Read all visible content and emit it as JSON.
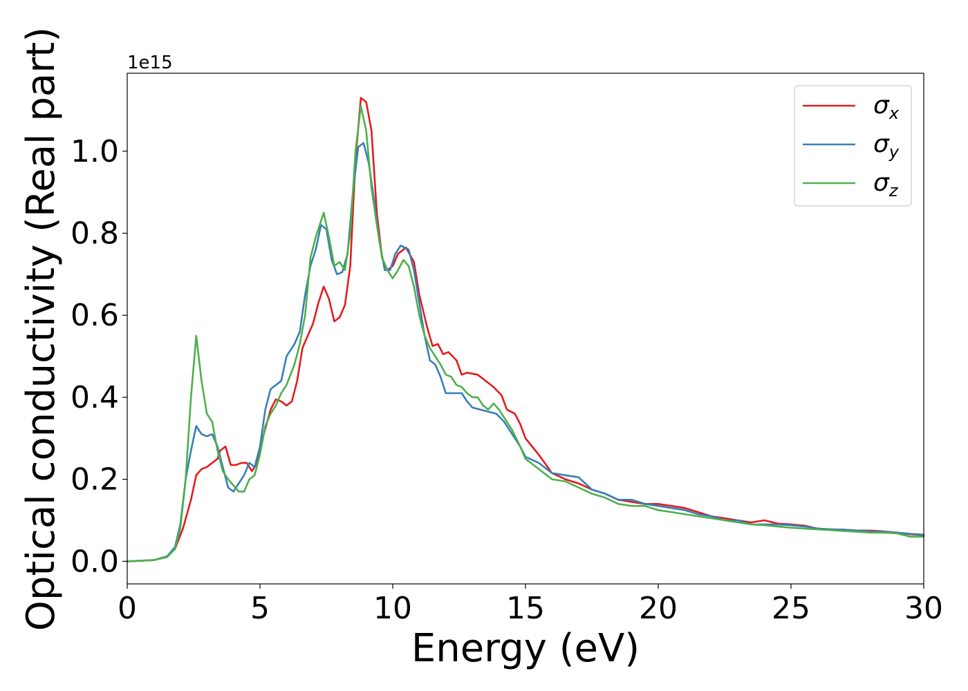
{
  "chart_data": {
    "type": "line",
    "title": "",
    "xlabel": "Energy (eV)",
    "ylabel": "Optical conductivity (Real part)",
    "y_offset_label": "1e15",
    "xlim": [
      0,
      30
    ],
    "ylim": [
      -0.055,
      1.19
    ],
    "x_ticks": [
      0,
      5,
      10,
      15,
      20,
      25,
      30
    ],
    "x_tick_labels": [
      "0",
      "5",
      "10",
      "15",
      "20",
      "25",
      "30"
    ],
    "y_ticks": [
      0.0,
      0.2,
      0.4,
      0.6,
      0.8,
      1.0
    ],
    "y_tick_labels": [
      "0.0",
      "0.2",
      "0.4",
      "0.6",
      "0.8",
      "1.0"
    ],
    "grid": false,
    "legend_position": "upper right",
    "series": [
      {
        "name": "σx",
        "symbol": "σ",
        "subscript": "x",
        "color": "#e41a1c",
        "points": [
          [
            0,
            0
          ],
          [
            1.0,
            0.003
          ],
          [
            1.5,
            0.012
          ],
          [
            1.8,
            0.03
          ],
          [
            2.1,
            0.08
          ],
          [
            2.4,
            0.15
          ],
          [
            2.6,
            0.21
          ],
          [
            2.8,
            0.225
          ],
          [
            3.0,
            0.23
          ],
          [
            3.2,
            0.24
          ],
          [
            3.4,
            0.25
          ],
          [
            3.5,
            0.27
          ],
          [
            3.7,
            0.28
          ],
          [
            3.9,
            0.235
          ],
          [
            4.1,
            0.235
          ],
          [
            4.3,
            0.24
          ],
          [
            4.5,
            0.24
          ],
          [
            4.7,
            0.22
          ],
          [
            4.9,
            0.24
          ],
          [
            5.1,
            0.3
          ],
          [
            5.4,
            0.37
          ],
          [
            5.6,
            0.395
          ],
          [
            5.8,
            0.39
          ],
          [
            6.0,
            0.38
          ],
          [
            6.2,
            0.39
          ],
          [
            6.4,
            0.44
          ],
          [
            6.6,
            0.52
          ],
          [
            6.8,
            0.55
          ],
          [
            7.0,
            0.58
          ],
          [
            7.2,
            0.63
          ],
          [
            7.4,
            0.67
          ],
          [
            7.6,
            0.64
          ],
          [
            7.8,
            0.585
          ],
          [
            8.0,
            0.595
          ],
          [
            8.2,
            0.625
          ],
          [
            8.4,
            0.72
          ],
          [
            8.6,
            0.98
          ],
          [
            8.8,
            1.13
          ],
          [
            9.0,
            1.12
          ],
          [
            9.2,
            1.05
          ],
          [
            9.4,
            0.85
          ],
          [
            9.6,
            0.74
          ],
          [
            9.8,
            0.71
          ],
          [
            10.0,
            0.72
          ],
          [
            10.2,
            0.75
          ],
          [
            10.5,
            0.765
          ],
          [
            10.8,
            0.73
          ],
          [
            11.0,
            0.65
          ],
          [
            11.3,
            0.57
          ],
          [
            11.5,
            0.525
          ],
          [
            11.7,
            0.53
          ],
          [
            11.9,
            0.505
          ],
          [
            12.1,
            0.51
          ],
          [
            12.4,
            0.49
          ],
          [
            12.6,
            0.455
          ],
          [
            12.8,
            0.46
          ],
          [
            13.2,
            0.455
          ],
          [
            13.5,
            0.44
          ],
          [
            13.8,
            0.425
          ],
          [
            14.1,
            0.405
          ],
          [
            14.3,
            0.37
          ],
          [
            14.6,
            0.36
          ],
          [
            14.8,
            0.335
          ],
          [
            15.0,
            0.3
          ],
          [
            15.5,
            0.26
          ],
          [
            16.0,
            0.215
          ],
          [
            16.5,
            0.2
          ],
          [
            17.0,
            0.19
          ],
          [
            17.5,
            0.175
          ],
          [
            18.0,
            0.165
          ],
          [
            18.5,
            0.15
          ],
          [
            19.0,
            0.145
          ],
          [
            19.5,
            0.14
          ],
          [
            20.0,
            0.14
          ],
          [
            20.5,
            0.135
          ],
          [
            21.0,
            0.13
          ],
          [
            21.5,
            0.12
          ],
          [
            22.0,
            0.11
          ],
          [
            22.5,
            0.105
          ],
          [
            23.0,
            0.1
          ],
          [
            23.5,
            0.095
          ],
          [
            24.0,
            0.1
          ],
          [
            24.5,
            0.092
          ],
          [
            25.0,
            0.09
          ],
          [
            25.5,
            0.087
          ],
          [
            26.0,
            0.08
          ],
          [
            26.5,
            0.078
          ],
          [
            27.0,
            0.077
          ],
          [
            27.5,
            0.075
          ],
          [
            28.0,
            0.075
          ],
          [
            28.5,
            0.073
          ],
          [
            29.0,
            0.07
          ],
          [
            29.5,
            0.066
          ],
          [
            30.0,
            0.064
          ]
        ]
      },
      {
        "name": "σy",
        "symbol": "σ",
        "subscript": "y",
        "color": "#377eb8",
        "points": [
          [
            0,
            0
          ],
          [
            1.0,
            0.003
          ],
          [
            1.5,
            0.012
          ],
          [
            1.8,
            0.035
          ],
          [
            2.0,
            0.09
          ],
          [
            2.2,
            0.2
          ],
          [
            2.4,
            0.27
          ],
          [
            2.6,
            0.33
          ],
          [
            2.8,
            0.31
          ],
          [
            3.0,
            0.305
          ],
          [
            3.2,
            0.31
          ],
          [
            3.4,
            0.28
          ],
          [
            3.6,
            0.23
          ],
          [
            3.8,
            0.18
          ],
          [
            4.0,
            0.17
          ],
          [
            4.2,
            0.19
          ],
          [
            4.4,
            0.21
          ],
          [
            4.6,
            0.24
          ],
          [
            4.8,
            0.23
          ],
          [
            5.0,
            0.28
          ],
          [
            5.2,
            0.37
          ],
          [
            5.4,
            0.42
          ],
          [
            5.6,
            0.43
          ],
          [
            5.8,
            0.44
          ],
          [
            6.0,
            0.5
          ],
          [
            6.3,
            0.53
          ],
          [
            6.5,
            0.56
          ],
          [
            6.7,
            0.65
          ],
          [
            6.9,
            0.72
          ],
          [
            7.1,
            0.76
          ],
          [
            7.3,
            0.82
          ],
          [
            7.5,
            0.81
          ],
          [
            7.7,
            0.735
          ],
          [
            7.9,
            0.7
          ],
          [
            8.1,
            0.705
          ],
          [
            8.3,
            0.75
          ],
          [
            8.5,
            0.9
          ],
          [
            8.7,
            1.01
          ],
          [
            8.9,
            1.02
          ],
          [
            9.1,
            0.97
          ],
          [
            9.3,
            0.88
          ],
          [
            9.5,
            0.78
          ],
          [
            9.7,
            0.71
          ],
          [
            9.9,
            0.71
          ],
          [
            10.1,
            0.75
          ],
          [
            10.3,
            0.77
          ],
          [
            10.6,
            0.76
          ],
          [
            10.8,
            0.71
          ],
          [
            11.0,
            0.63
          ],
          [
            11.2,
            0.55
          ],
          [
            11.4,
            0.49
          ],
          [
            11.6,
            0.48
          ],
          [
            11.8,
            0.45
          ],
          [
            12.0,
            0.41
          ],
          [
            12.3,
            0.41
          ],
          [
            12.6,
            0.41
          ],
          [
            12.8,
            0.39
          ],
          [
            13.0,
            0.375
          ],
          [
            13.3,
            0.37
          ],
          [
            13.6,
            0.365
          ],
          [
            13.9,
            0.36
          ],
          [
            14.2,
            0.34
          ],
          [
            14.5,
            0.31
          ],
          [
            14.8,
            0.28
          ],
          [
            15.0,
            0.255
          ],
          [
            15.5,
            0.24
          ],
          [
            16.0,
            0.215
          ],
          [
            16.5,
            0.21
          ],
          [
            17.0,
            0.205
          ],
          [
            17.5,
            0.175
          ],
          [
            18.0,
            0.165
          ],
          [
            18.5,
            0.15
          ],
          [
            19.0,
            0.15
          ],
          [
            19.5,
            0.14
          ],
          [
            20.0,
            0.135
          ],
          [
            20.5,
            0.13
          ],
          [
            21.0,
            0.125
          ],
          [
            21.5,
            0.115
          ],
          [
            22.0,
            0.11
          ],
          [
            22.5,
            0.1
          ],
          [
            23.0,
            0.1
          ],
          [
            23.5,
            0.09
          ],
          [
            24.0,
            0.09
          ],
          [
            24.5,
            0.09
          ],
          [
            25.0,
            0.088
          ],
          [
            25.5,
            0.085
          ],
          [
            26.0,
            0.08
          ],
          [
            26.5,
            0.078
          ],
          [
            27.0,
            0.077
          ],
          [
            27.5,
            0.075
          ],
          [
            28.0,
            0.073
          ],
          [
            28.5,
            0.072
          ],
          [
            29.0,
            0.07
          ],
          [
            29.5,
            0.067
          ],
          [
            30.0,
            0.065
          ]
        ]
      },
      {
        "name": "σz",
        "symbol": "σ",
        "subscript": "z",
        "color": "#4daf4a",
        "points": [
          [
            0,
            0
          ],
          [
            1.0,
            0.003
          ],
          [
            1.5,
            0.01
          ],
          [
            1.8,
            0.03
          ],
          [
            2.0,
            0.08
          ],
          [
            2.2,
            0.2
          ],
          [
            2.4,
            0.4
          ],
          [
            2.6,
            0.55
          ],
          [
            2.8,
            0.44
          ],
          [
            3.0,
            0.36
          ],
          [
            3.2,
            0.34
          ],
          [
            3.4,
            0.27
          ],
          [
            3.6,
            0.22
          ],
          [
            3.8,
            0.2
          ],
          [
            4.0,
            0.185
          ],
          [
            4.2,
            0.17
          ],
          [
            4.4,
            0.17
          ],
          [
            4.6,
            0.2
          ],
          [
            4.8,
            0.21
          ],
          [
            5.0,
            0.26
          ],
          [
            5.2,
            0.33
          ],
          [
            5.4,
            0.36
          ],
          [
            5.6,
            0.38
          ],
          [
            5.8,
            0.41
          ],
          [
            6.0,
            0.43
          ],
          [
            6.3,
            0.48
          ],
          [
            6.5,
            0.53
          ],
          [
            6.7,
            0.6
          ],
          [
            6.9,
            0.74
          ],
          [
            7.1,
            0.79
          ],
          [
            7.3,
            0.83
          ],
          [
            7.4,
            0.85
          ],
          [
            7.6,
            0.79
          ],
          [
            7.8,
            0.72
          ],
          [
            8.0,
            0.73
          ],
          [
            8.2,
            0.71
          ],
          [
            8.4,
            0.8
          ],
          [
            8.6,
            1.0
          ],
          [
            8.8,
            1.11
          ],
          [
            9.0,
            1.05
          ],
          [
            9.2,
            0.91
          ],
          [
            9.4,
            0.82
          ],
          [
            9.6,
            0.74
          ],
          [
            9.8,
            0.71
          ],
          [
            10.0,
            0.69
          ],
          [
            10.2,
            0.71
          ],
          [
            10.4,
            0.735
          ],
          [
            10.6,
            0.72
          ],
          [
            10.8,
            0.67
          ],
          [
            11.0,
            0.6
          ],
          [
            11.2,
            0.55
          ],
          [
            11.4,
            0.52
          ],
          [
            11.6,
            0.5
          ],
          [
            11.8,
            0.48
          ],
          [
            12.0,
            0.455
          ],
          [
            12.2,
            0.45
          ],
          [
            12.4,
            0.43
          ],
          [
            12.6,
            0.425
          ],
          [
            12.8,
            0.41
          ],
          [
            13.0,
            0.4
          ],
          [
            13.2,
            0.4
          ],
          [
            13.4,
            0.38
          ],
          [
            13.6,
            0.37
          ],
          [
            13.8,
            0.385
          ],
          [
            14.0,
            0.37
          ],
          [
            14.2,
            0.35
          ],
          [
            14.5,
            0.32
          ],
          [
            14.8,
            0.28
          ],
          [
            15.0,
            0.25
          ],
          [
            15.5,
            0.225
          ],
          [
            16.0,
            0.2
          ],
          [
            16.5,
            0.195
          ],
          [
            17.0,
            0.18
          ],
          [
            17.5,
            0.165
          ],
          [
            18.0,
            0.155
          ],
          [
            18.5,
            0.14
          ],
          [
            19.0,
            0.135
          ],
          [
            19.5,
            0.135
          ],
          [
            20.0,
            0.125
          ],
          [
            20.5,
            0.12
          ],
          [
            21.0,
            0.115
          ],
          [
            21.5,
            0.11
          ],
          [
            22.0,
            0.105
          ],
          [
            22.5,
            0.1
          ],
          [
            23.0,
            0.095
          ],
          [
            23.5,
            0.09
          ],
          [
            24.0,
            0.088
          ],
          [
            24.5,
            0.085
          ],
          [
            25.0,
            0.082
          ],
          [
            25.5,
            0.08
          ],
          [
            26.0,
            0.078
          ],
          [
            26.5,
            0.076
          ],
          [
            27.0,
            0.074
          ],
          [
            27.5,
            0.072
          ],
          [
            28.0,
            0.07
          ],
          [
            28.5,
            0.07
          ],
          [
            29.0,
            0.068
          ],
          [
            29.5,
            0.06
          ],
          [
            30.0,
            0.06
          ]
        ]
      }
    ]
  }
}
